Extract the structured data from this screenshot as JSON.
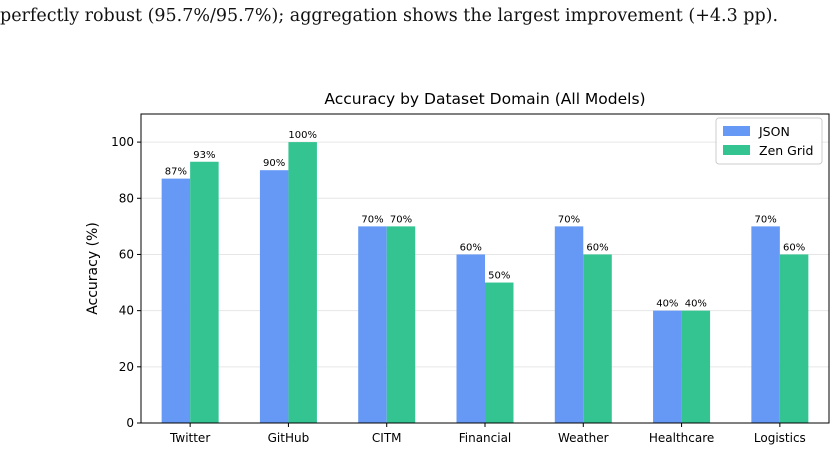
{
  "intro_text": "perfectly robust (95.7%/95.7%); aggregation shows the largest improvement (+4.3 pp).",
  "chart_data": {
    "type": "bar",
    "title": "Accuracy by Dataset Domain (All Models)",
    "xlabel": "",
    "ylabel": "Accuracy (%)",
    "ylim": [
      0,
      110
    ],
    "yticks": [
      0,
      20,
      40,
      60,
      80,
      100
    ],
    "grid": "y",
    "legend_position": "top-right",
    "categories": [
      "Twitter",
      "GitHub",
      "CITM",
      "Financial",
      "Weather",
      "Healthcare",
      "Logistics"
    ],
    "series": [
      {
        "name": "JSON",
        "color": "#6699f5",
        "values": [
          87,
          90,
          70,
          60,
          70,
          40,
          70
        ],
        "labels": [
          "87%",
          "90%",
          "70%",
          "60%",
          "70%",
          "40%",
          "70%"
        ]
      },
      {
        "name": "Zen Grid",
        "color": "#34c492",
        "values": [
          93,
          100,
          70,
          50,
          60,
          40,
          60
        ],
        "labels": [
          "93%",
          "100%",
          "70%",
          "50%",
          "60%",
          "40%",
          "60%"
        ]
      }
    ]
  }
}
